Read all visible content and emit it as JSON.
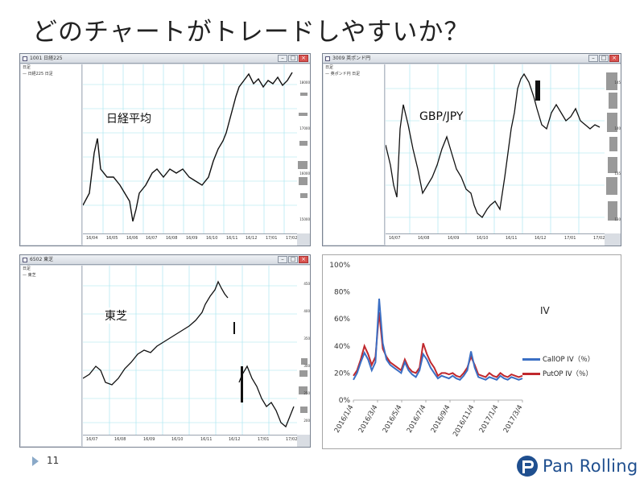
{
  "title": "どのチャートがトレードしやすいか？",
  "page_number": "11",
  "brand": {
    "name": "Pan Rolling",
    "colors": {
      "primary": "#1f4f8f"
    }
  },
  "panels": {
    "nikkei": {
      "window_title": "1001 日経225",
      "legend_lines": [
        "日足",
        "— 日経225 日足"
      ],
      "label": "日経平均",
      "x_ticks": [
        "16/04",
        "16/05",
        "16/06",
        "16/07",
        "16/08",
        "16/09",
        "16/10",
        "16/11",
        "16/12",
        "17/01",
        "17/02"
      ],
      "y_ticks": [
        "18000",
        "17000",
        "16000",
        "15000"
      ]
    },
    "gbpjpy": {
      "window_title": "3009 英ポンド円",
      "legend_lines": [
        "日足",
        "— 英ポンド円 日足"
      ],
      "label": "GBP/JPY",
      "x_ticks": [
        "16/07",
        "16/08",
        "16/09",
        "16/10",
        "16/11",
        "16/12",
        "17/01",
        "17/02"
      ],
      "y_ticks": [
        "145",
        "140",
        "135",
        "130"
      ]
    },
    "toshiba": {
      "window_title": "6502 東芝",
      "legend_lines": [
        "日足",
        "— 東芝"
      ],
      "label": "東芝",
      "x_ticks": [
        "16/07",
        "16/08",
        "16/09",
        "16/10",
        "16/11",
        "16/12",
        "17/01",
        "17/02"
      ],
      "y_ticks": [
        "450",
        "400",
        "350",
        "300",
        "250",
        "200"
      ]
    }
  },
  "chart_data": {
    "type": "line",
    "title": "IV",
    "xlabel": "",
    "ylabel": "",
    "ylim": [
      0,
      100
    ],
    "yticks": [
      "0%",
      "20%",
      "40%",
      "60%",
      "80%",
      "100%"
    ],
    "x_tick_labels": [
      "2016/1/4",
      "2016/3/4",
      "2016/5/4",
      "2016/7/4",
      "2016/9/4",
      "2016/11/4",
      "2017/1/4",
      "2017/3/4"
    ],
    "legend_position": "right",
    "series": [
      {
        "name": "CallOP IV（％）",
        "color": "#3b6fc4",
        "values": [
          15,
          20,
          28,
          35,
          30,
          22,
          28,
          75,
          42,
          30,
          26,
          24,
          22,
          20,
          28,
          22,
          19,
          17,
          22,
          34,
          30,
          24,
          20,
          16,
          18,
          17,
          16,
          18,
          16,
          15,
          18,
          22,
          36,
          24,
          17,
          16,
          15,
          17,
          16,
          15,
          18,
          16,
          15,
          17,
          16,
          15,
          16
        ]
      },
      {
        "name": "PutOP IV（％）",
        "color": "#c0282d",
        "values": [
          18,
          22,
          30,
          40,
          34,
          26,
          32,
          65,
          38,
          32,
          28,
          26,
          24,
          22,
          30,
          24,
          21,
          20,
          24,
          42,
          34,
          28,
          24,
          18,
          20,
          20,
          19,
          20,
          18,
          17,
          20,
          24,
          32,
          26,
          19,
          18,
          17,
          20,
          18,
          17,
          20,
          18,
          17,
          19,
          18,
          17,
          18
        ]
      }
    ]
  }
}
